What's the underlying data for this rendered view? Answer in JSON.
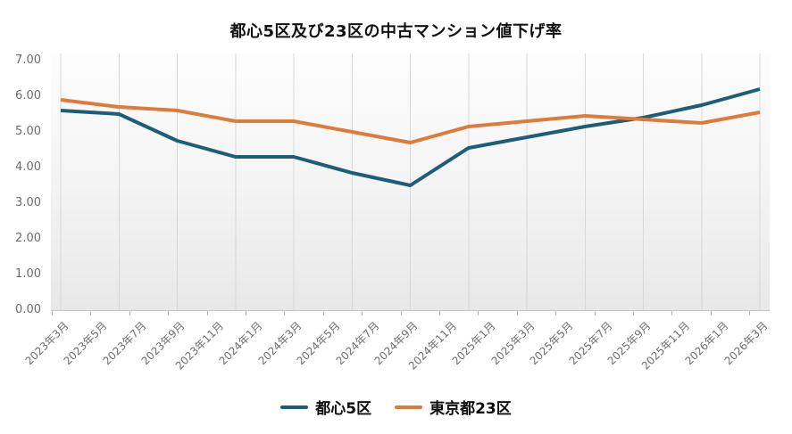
{
  "chart_data": {
    "type": "line",
    "title": "都心5区及び23区の中古マンション値下げ率",
    "categories": [
      "2023年3月",
      "2023年5月",
      "2023年7月",
      "2023年9月",
      "2023年11月",
      "2024年1月",
      "2024年3月",
      "2024年5月",
      "2024年7月",
      "2024年9月",
      "2024年11月",
      "2025年1月",
      "2025年3月",
      "2025年5月",
      "2025年7月",
      "2025年9月",
      "2025年11月",
      "2026年1月",
      "2026年3月"
    ],
    "series": [
      {
        "name": "都心5区",
        "color": "#1e5d77",
        "values": [
          5.6,
          5.5,
          4.75,
          4.3,
          4.3,
          3.85,
          3.5,
          4.55,
          4.85,
          5.15,
          5.4,
          5.75,
          6.2
        ]
      },
      {
        "name": "東京都23区",
        "color": "#de7a3a",
        "values": [
          5.9,
          5.7,
          5.6,
          5.3,
          5.3,
          5.0,
          4.7,
          5.15,
          5.3,
          5.45,
          5.35,
          5.25,
          5.55
        ]
      }
    ],
    "yticks": [
      "7.00",
      "6.00",
      "5.00",
      "4.00",
      "3.00",
      "2.00",
      "1.00",
      "0.00"
    ],
    "ylim": [
      0,
      7
    ],
    "ylabel": "",
    "xlabel": "",
    "grid": "vertical-only",
    "vertical_gridlines": 13,
    "points_align": "gridlines",
    "legend_position": "bottom",
    "colors": {
      "gridline": "#d8d8d8",
      "axis_line": "#c6c6c6",
      "tick": "#b5b5b5",
      "axis_label": "#6f6f6f",
      "title_text": "#111111",
      "plot_bg_top": "#fdfdfd",
      "plot_bg_bottom": "#e8e8e8"
    }
  }
}
